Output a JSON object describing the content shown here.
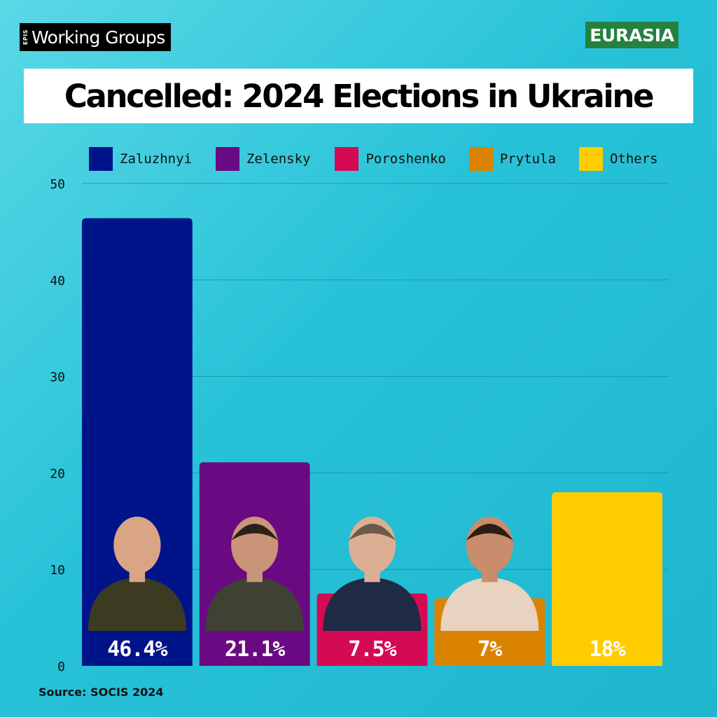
{
  "brand": {
    "small": "EPIS",
    "main": "Working Groups"
  },
  "badge": "EURASIA",
  "title": "Cancelled: 2024 Elections in Ukraine",
  "source": "Source: SOCIS 2024",
  "chart_data": {
    "type": "bar",
    "categories": [
      "Zaluzhnyi",
      "Zelensky",
      "Poroshenko",
      "Prytula",
      "Others"
    ],
    "values": [
      46.4,
      21.1,
      7.5,
      7,
      18
    ],
    "data_labels": [
      "46.4%",
      "21.1%",
      "7.5%",
      "7%",
      "18%"
    ],
    "colors": [
      "#00148a",
      "#6a0a82",
      "#d50a55",
      "#da8300",
      "#ffcc00"
    ],
    "legend": [
      "Zaluzhnyi",
      "Zelensky",
      "Poroshenko",
      "Prytula",
      "Others"
    ],
    "legend_position": "top",
    "ylim": [
      0,
      50
    ],
    "yticks": [
      0,
      10,
      20,
      30,
      40,
      50
    ],
    "grid": true,
    "photos": [
      "portrait-zaluzhnyi",
      "portrait-zelensky",
      "portrait-poroshenko",
      "portrait-prytula",
      null
    ]
  }
}
